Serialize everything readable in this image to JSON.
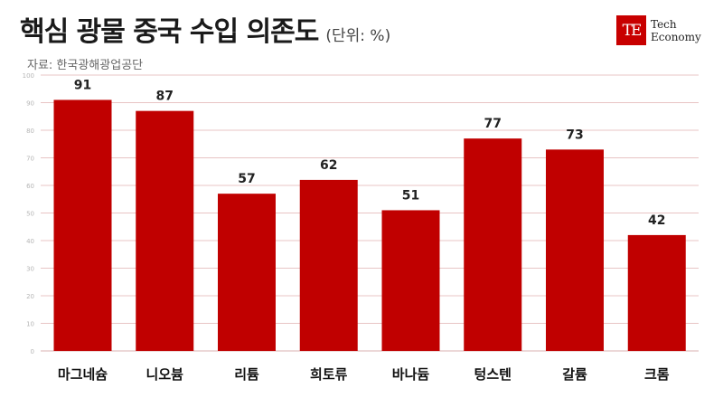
{
  "header": {
    "title": "핵심 광물 중국 수입 의존도",
    "unit": "(단위: %)",
    "source": "자료: 한국광해광업공단"
  },
  "logo": {
    "mark": "TE",
    "line1": "Tech",
    "line2": "Economy",
    "color": "#c80000"
  },
  "chart_data": {
    "type": "bar",
    "categories": [
      "마그네슘",
      "니오븀",
      "리튬",
      "희토류",
      "바나듐",
      "텅스텐",
      "갈륨",
      "크롬"
    ],
    "values": [
      91,
      87,
      57,
      62,
      51,
      77,
      73,
      42
    ],
    "ylim": [
      0,
      100
    ],
    "yticks": [
      0,
      10,
      20,
      30,
      40,
      50,
      60,
      70,
      80,
      90,
      100
    ],
    "grid": true,
    "bar_color": "#c00000",
    "gridline_color": "#e8c4c4"
  }
}
